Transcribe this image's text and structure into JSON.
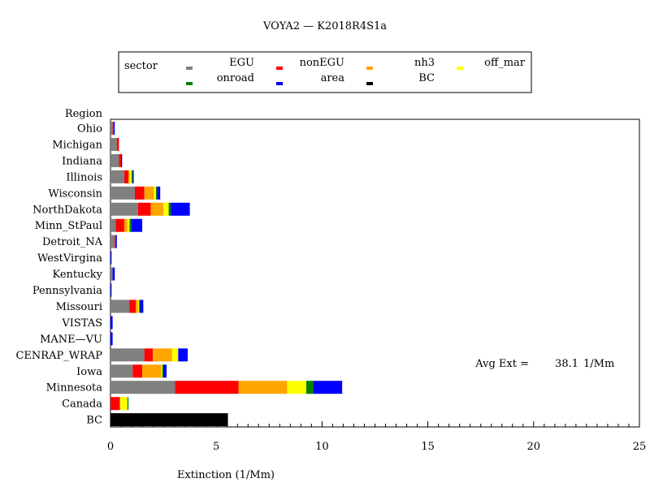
{
  "chart_data": {
    "type": "bar",
    "orientation": "horizontal",
    "stacked": true,
    "title": "VOYA2 — K2018R4S1a",
    "xlabel": "Extinction (1/Mm)",
    "ylabel": "Region",
    "xlim": [
      0,
      25
    ],
    "xticks": [
      0,
      5,
      10,
      15,
      20,
      25
    ],
    "legend": {
      "title": "sector",
      "placement": "top"
    },
    "annotation": {
      "label": "Avg Ext =",
      "value": "38.1",
      "unit": "1/Mm"
    },
    "categories": [
      "Ohio",
      "Michigan",
      "Indiana",
      "Illinois",
      "Wisconsin",
      "NorthDakota",
      "Minn_StPaul",
      "Detroit_NA",
      "WestVirgina",
      "Kentucky",
      "Pennsylvania",
      "Missouri",
      "VISTAS",
      "MANE—VU",
      "CENRAP_WRAP",
      "Iowa",
      "Minnesota",
      "Canada",
      "BC"
    ],
    "series": [
      {
        "name": "EGU",
        "color": "#808080",
        "values": [
          0.1,
          0.3,
          0.4,
          0.65,
          1.15,
          1.3,
          0.25,
          0.2,
          0.0,
          0.1,
          0.0,
          0.9,
          0.0,
          0.0,
          1.6,
          1.05,
          3.05,
          0.0,
          0.0
        ]
      },
      {
        "name": "nonEGU",
        "color": "#ff0000",
        "values": [
          0.05,
          0.1,
          0.1,
          0.2,
          0.45,
          0.6,
          0.4,
          0.05,
          0.0,
          0.0,
          0.0,
          0.3,
          0.0,
          0.0,
          0.4,
          0.45,
          3.0,
          0.45,
          0.0
        ]
      },
      {
        "name": "nh3",
        "color": "#ffa500",
        "values": [
          0.0,
          0.0,
          0.0,
          0.05,
          0.45,
          0.6,
          0.15,
          0.0,
          0.0,
          0.0,
          0.0,
          0.1,
          0.0,
          0.0,
          0.9,
          0.9,
          2.3,
          0.0,
          0.0
        ]
      },
      {
        "name": "off_mar",
        "color": "#ffff00",
        "values": [
          0.0,
          0.0,
          0.0,
          0.1,
          0.1,
          0.25,
          0.1,
          0.0,
          0.0,
          0.0,
          0.0,
          0.05,
          0.0,
          0.0,
          0.3,
          0.05,
          0.9,
          0.35,
          0.0
        ]
      },
      {
        "name": "onroad",
        "color": "#008000",
        "values": [
          0.0,
          0.0,
          0.0,
          0.05,
          0.05,
          0.1,
          0.1,
          0.0,
          0.0,
          0.0,
          0.0,
          0.05,
          0.0,
          0.0,
          0.0,
          0.05,
          0.35,
          0.05,
          0.0
        ]
      },
      {
        "name": "area",
        "color": "#0000ff",
        "values": [
          0.05,
          0.0,
          0.05,
          0.05,
          0.15,
          0.9,
          0.5,
          0.05,
          0.05,
          0.1,
          0.05,
          0.15,
          0.1,
          0.1,
          0.45,
          0.15,
          1.35,
          0.0,
          0.0
        ]
      },
      {
        "name": "BC",
        "color": "#000000",
        "values": [
          0.0,
          0.0,
          0.0,
          0.0,
          0.0,
          0.0,
          0.0,
          0.0,
          0.0,
          0.0,
          0.0,
          0.0,
          0.0,
          0.0,
          0.0,
          0.0,
          0.0,
          0.0,
          5.55
        ]
      }
    ]
  }
}
